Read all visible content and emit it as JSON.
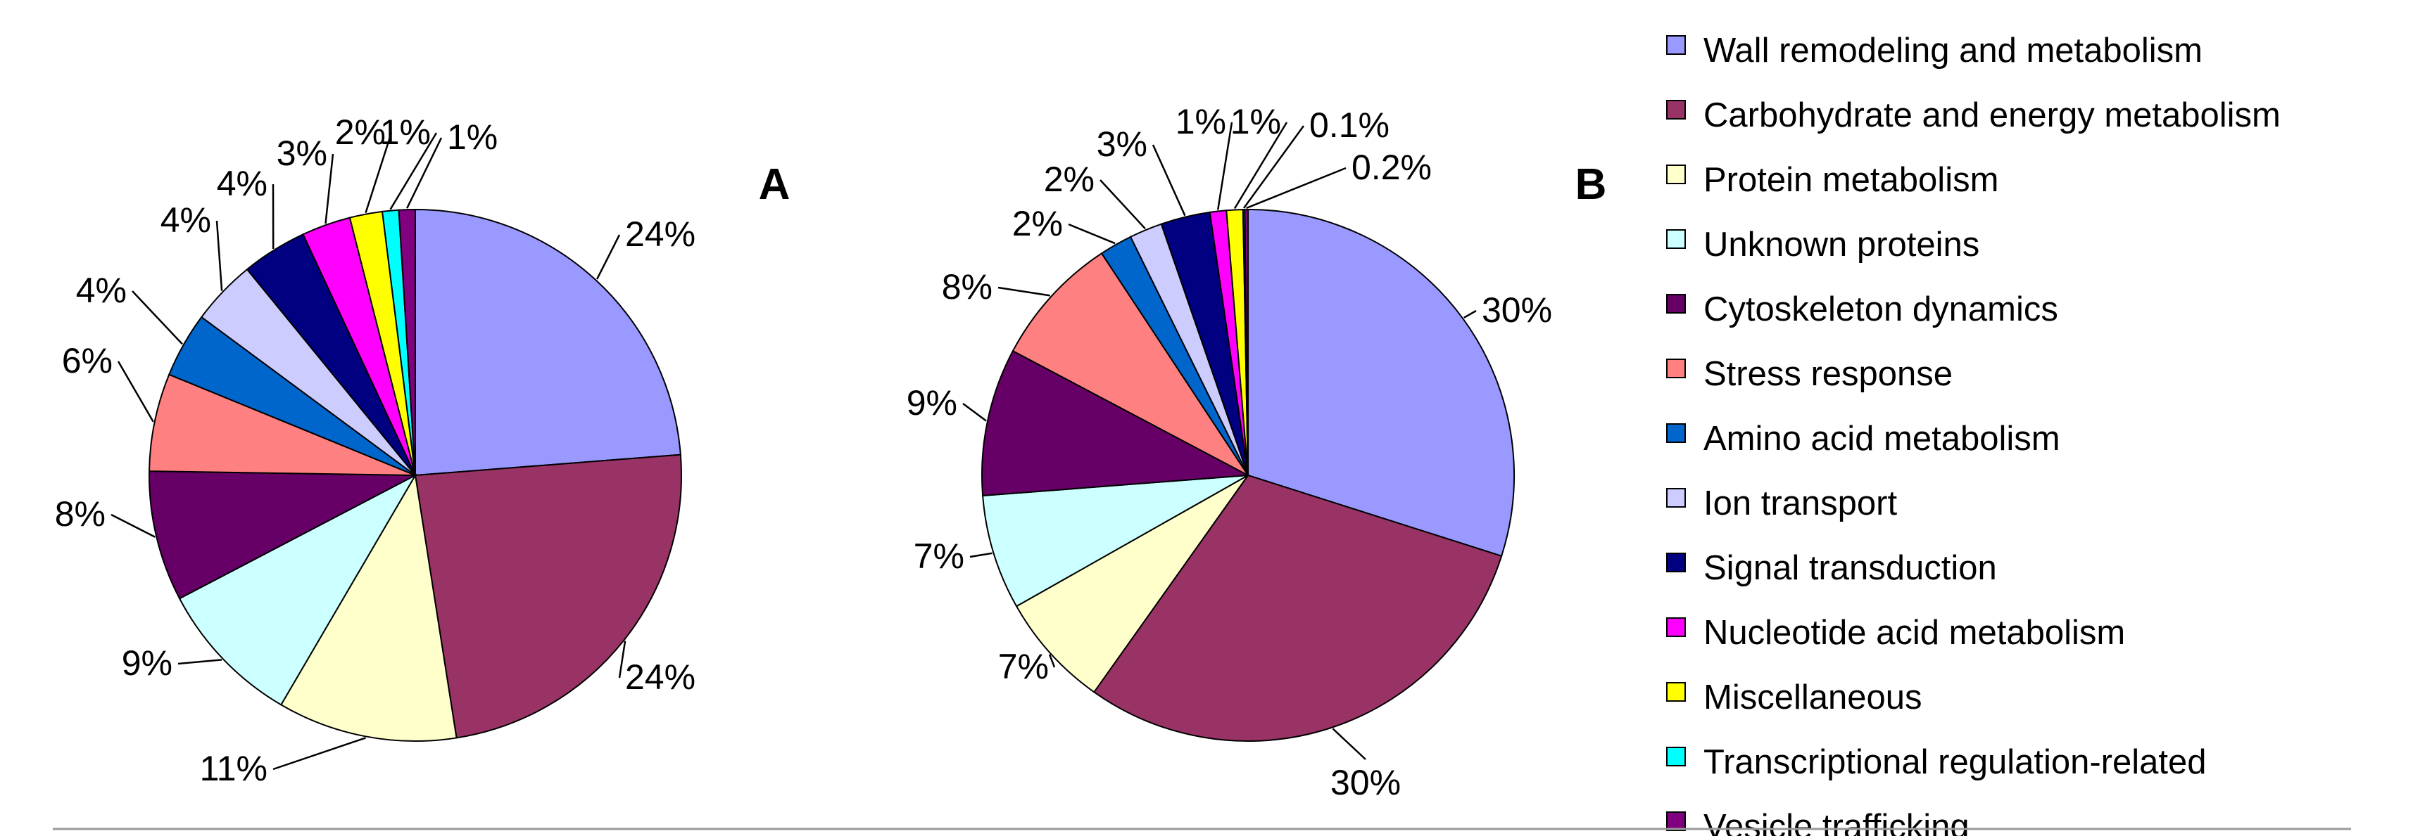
{
  "chart_data": [
    {
      "type": "pie",
      "panel_label": "A",
      "labels": [
        "24%",
        "24%",
        "11%",
        "9%",
        "8%",
        "6%",
        "4%",
        "4%",
        "4%",
        "3%",
        "2%",
        "1%",
        "1%"
      ],
      "values": [
        24,
        24,
        11,
        9,
        8,
        6,
        4,
        4,
        4,
        3,
        2,
        1,
        1
      ],
      "categories": [
        "Wall remodeling and metabolism",
        "Carbohydrate and energy metabolism",
        "Protein metabolism",
        "Unknown proteins",
        "Cytoskeleton dynamics",
        "Stress response",
        "Amino acid metabolism",
        "Ion transport",
        "Signal transduction",
        "Nucleotide acid metabolism",
        "Miscellaneous",
        "Transcriptional regulation-related",
        "Vesicle trafficking"
      ]
    },
    {
      "type": "pie",
      "panel_label": "B",
      "labels": [
        "30%",
        "30%",
        "7%",
        "7%",
        "9%",
        "8%",
        "2%",
        "2%",
        "3%",
        "1%",
        "1%",
        "0.1%",
        "0.2%"
      ],
      "values": [
        30,
        30,
        7,
        7,
        9,
        8,
        2,
        2,
        3,
        1,
        1,
        0.1,
        0.2
      ],
      "categories": [
        "Wall remodeling and metabolism",
        "Carbohydrate and energy metabolism",
        "Protein metabolism",
        "Unknown proteins",
        "Cytoskeleton dynamics",
        "Stress response",
        "Amino acid metabolism",
        "Ion transport",
        "Signal transduction",
        "Nucleotide acid metabolism",
        "Miscellaneous",
        "Transcriptional regulation-related",
        "Vesicle trafficking"
      ]
    }
  ],
  "legend": [
    {
      "label": "Wall remodeling and metabolism",
      "color": "#9999ff"
    },
    {
      "label": "Carbohydrate and energy metabolism",
      "color": "#993366"
    },
    {
      "label": "Protein metabolism",
      "color": "#ffffcc"
    },
    {
      "label": "Unknown proteins",
      "color": "#ccffff"
    },
    {
      "label": "Cytoskeleton dynamics",
      "color": "#660066"
    },
    {
      "label": "Stress response",
      "color": "#ff8080"
    },
    {
      "label": "Amino acid metabolism",
      "color": "#0066cc"
    },
    {
      "label": "Ion transport",
      "color": "#ccccff"
    },
    {
      "label": "Signal transduction",
      "color": "#000080"
    },
    {
      "label": "Nucleotide acid metabolism",
      "color": "#ff00ff"
    },
    {
      "label": "Miscellaneous",
      "color": "#ffff00"
    },
    {
      "label": "Transcriptional regulation-related",
      "color": "#00ffff"
    },
    {
      "label": "Vesicle trafficking",
      "color": "#800080"
    }
  ]
}
